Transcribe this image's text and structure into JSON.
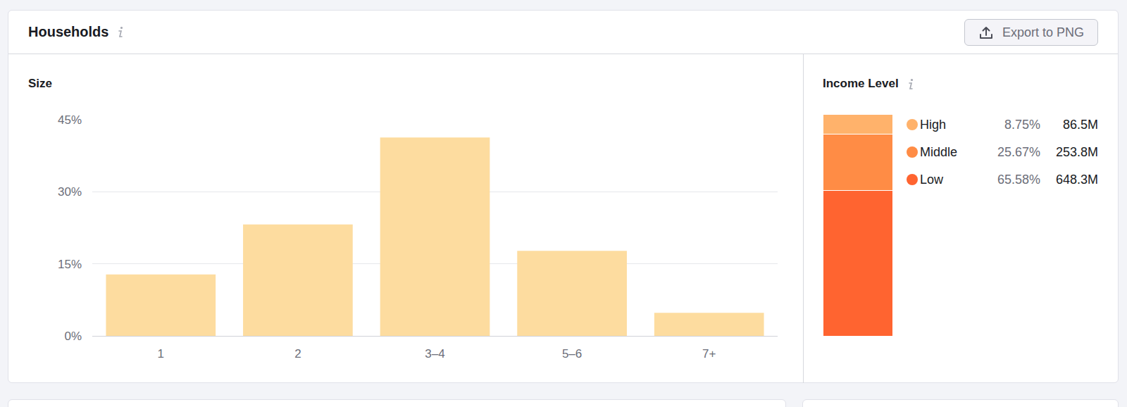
{
  "header": {
    "title": "Households",
    "button": "Export to PNG"
  },
  "chart_data": [
    {
      "type": "bar",
      "title": "Size",
      "categories": [
        "1",
        "2",
        "3–4",
        "5–6",
        "7+"
      ],
      "values": [
        12.8,
        23.2,
        41.3,
        17.7,
        4.8
      ],
      "color": "#fddc9f",
      "ylim": [
        0,
        45
      ],
      "yticks": [
        {
          "value": 0,
          "label": "0%"
        },
        {
          "value": 15,
          "label": "15%"
        },
        {
          "value": 30,
          "label": "30%"
        },
        {
          "value": 45,
          "label": "45%"
        }
      ],
      "grid": true
    },
    {
      "type": "bar",
      "title": "Income Level",
      "stacked": true,
      "tick_labels": false,
      "legend": "right",
      "ylim": [
        0,
        100
      ],
      "series": [
        {
          "name": "High",
          "color": "#ffb26b",
          "values": [
            8.75
          ],
          "value_labels": [
            "8.75%"
          ],
          "count_label": "86.5M"
        },
        {
          "name": "Middle",
          "color": "#ff8c45",
          "values": [
            25.67
          ],
          "value_labels": [
            "25.67%"
          ],
          "count_label": "253.8M"
        },
        {
          "name": "Low",
          "color": "#ff6430",
          "values": [
            65.58
          ],
          "value_labels": [
            "65.58%"
          ],
          "count_label": "648.3M"
        }
      ]
    }
  ]
}
